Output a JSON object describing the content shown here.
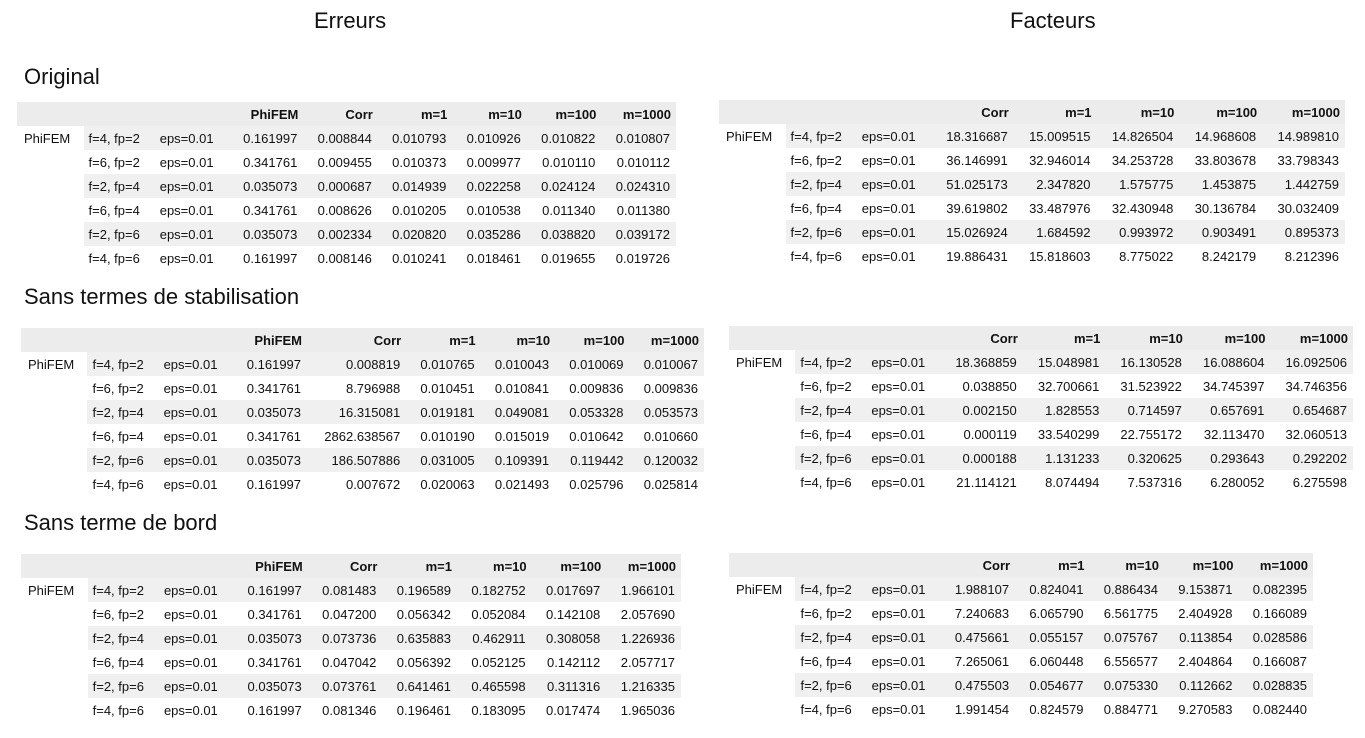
{
  "columns": {
    "left_title": "Erreurs",
    "right_title": "Facteurs"
  },
  "sections": [
    {
      "title": "Original",
      "errors": {
        "headers": [
          "PhiFEM",
          "Corr",
          "m=1",
          "m=10",
          "m=100",
          "m=1000"
        ],
        "group_label": "PhiFEM",
        "rows": [
          {
            "f": "f=4, fp=2",
            "eps": "eps=0.01",
            "values": [
              "0.161997",
              "0.008844",
              "0.010793",
              "0.010926",
              "0.010822",
              "0.010807"
            ]
          },
          {
            "f": "f=6, fp=2",
            "eps": "eps=0.01",
            "values": [
              "0.341761",
              "0.009455",
              "0.010373",
              "0.009977",
              "0.010110",
              "0.010112"
            ]
          },
          {
            "f": "f=2, fp=4",
            "eps": "eps=0.01",
            "values": [
              "0.035073",
              "0.000687",
              "0.014939",
              "0.022258",
              "0.024124",
              "0.024310"
            ]
          },
          {
            "f": "f=6, fp=4",
            "eps": "eps=0.01",
            "values": [
              "0.341761",
              "0.008626",
              "0.010205",
              "0.010538",
              "0.011340",
              "0.011380"
            ]
          },
          {
            "f": "f=2, fp=6",
            "eps": "eps=0.01",
            "values": [
              "0.035073",
              "0.002334",
              "0.020820",
              "0.035286",
              "0.038820",
              "0.039172"
            ]
          },
          {
            "f": "f=4, fp=6",
            "eps": "eps=0.01",
            "values": [
              "0.161997",
              "0.008146",
              "0.010241",
              "0.018461",
              "0.019655",
              "0.019726"
            ]
          }
        ]
      },
      "factors": {
        "headers": [
          "Corr",
          "m=1",
          "m=10",
          "m=100",
          "m=1000"
        ],
        "group_label": "PhiFEM",
        "rows": [
          {
            "f": "f=4, fp=2",
            "eps": "eps=0.01",
            "values": [
              "18.316687",
              "15.009515",
              "14.826504",
              "14.968608",
              "14.989810"
            ]
          },
          {
            "f": "f=6, fp=2",
            "eps": "eps=0.01",
            "values": [
              "36.146991",
              "32.946014",
              "34.253728",
              "33.803678",
              "33.798343"
            ]
          },
          {
            "f": "f=2, fp=4",
            "eps": "eps=0.01",
            "values": [
              "51.025173",
              "2.347820",
              "1.575775",
              "1.453875",
              "1.442759"
            ]
          },
          {
            "f": "f=6, fp=4",
            "eps": "eps=0.01",
            "values": [
              "39.619802",
              "33.487976",
              "32.430948",
              "30.136784",
              "30.032409"
            ]
          },
          {
            "f": "f=2, fp=6",
            "eps": "eps=0.01",
            "values": [
              "15.026924",
              "1.684592",
              "0.993972",
              "0.903491",
              "0.895373"
            ]
          },
          {
            "f": "f=4, fp=6",
            "eps": "eps=0.01",
            "values": [
              "19.886431",
              "15.818603",
              "8.775022",
              "8.242179",
              "8.212396"
            ]
          }
        ]
      }
    },
    {
      "title": "Sans termes de stabilisation",
      "errors": {
        "headers": [
          "PhiFEM",
          "Corr",
          "m=1",
          "m=10",
          "m=100",
          "m=1000"
        ],
        "group_label": "PhiFEM",
        "rows": [
          {
            "f": "f=4, fp=2",
            "eps": "eps=0.01",
            "values": [
              "0.161997",
              "0.008819",
              "0.010765",
              "0.010043",
              "0.010069",
              "0.010067"
            ]
          },
          {
            "f": "f=6, fp=2",
            "eps": "eps=0.01",
            "values": [
              "0.341761",
              "8.796988",
              "0.010451",
              "0.010841",
              "0.009836",
              "0.009836"
            ]
          },
          {
            "f": "f=2, fp=4",
            "eps": "eps=0.01",
            "values": [
              "0.035073",
              "16.315081",
              "0.019181",
              "0.049081",
              "0.053328",
              "0.053573"
            ]
          },
          {
            "f": "f=6, fp=4",
            "eps": "eps=0.01",
            "values": [
              "0.341761",
              "2862.638567",
              "0.010190",
              "0.015019",
              "0.010642",
              "0.010660"
            ]
          },
          {
            "f": "f=2, fp=6",
            "eps": "eps=0.01",
            "values": [
              "0.035073",
              "186.507886",
              "0.031005",
              "0.109391",
              "0.119442",
              "0.120032"
            ]
          },
          {
            "f": "f=4, fp=6",
            "eps": "eps=0.01",
            "values": [
              "0.161997",
              "0.007672",
              "0.020063",
              "0.021493",
              "0.025796",
              "0.025814"
            ]
          }
        ]
      },
      "factors": {
        "headers": [
          "Corr",
          "m=1",
          "m=10",
          "m=100",
          "m=1000"
        ],
        "group_label": "PhiFEM",
        "rows": [
          {
            "f": "f=4, fp=2",
            "eps": "eps=0.01",
            "values": [
              "18.368859",
              "15.048981",
              "16.130528",
              "16.088604",
              "16.092506"
            ]
          },
          {
            "f": "f=6, fp=2",
            "eps": "eps=0.01",
            "values": [
              "0.038850",
              "32.700661",
              "31.523922",
              "34.745397",
              "34.746356"
            ]
          },
          {
            "f": "f=2, fp=4",
            "eps": "eps=0.01",
            "values": [
              "0.002150",
              "1.828553",
              "0.714597",
              "0.657691",
              "0.654687"
            ]
          },
          {
            "f": "f=6, fp=4",
            "eps": "eps=0.01",
            "values": [
              "0.000119",
              "33.540299",
              "22.755172",
              "32.113470",
              "32.060513"
            ]
          },
          {
            "f": "f=2, fp=6",
            "eps": "eps=0.01",
            "values": [
              "0.000188",
              "1.131233",
              "0.320625",
              "0.293643",
              "0.292202"
            ]
          },
          {
            "f": "f=4, fp=6",
            "eps": "eps=0.01",
            "values": [
              "21.114121",
              "8.074494",
              "7.537316",
              "6.280052",
              "6.275598"
            ]
          }
        ]
      }
    },
    {
      "title": "Sans terme de bord",
      "errors": {
        "headers": [
          "PhiFEM",
          "Corr",
          "m=1",
          "m=10",
          "m=100",
          "m=1000"
        ],
        "group_label": "PhiFEM",
        "rows": [
          {
            "f": "f=4, fp=2",
            "eps": "eps=0.01",
            "values": [
              "0.161997",
              "0.081483",
              "0.196589",
              "0.182752",
              "0.017697",
              "1.966101"
            ]
          },
          {
            "f": "f=6, fp=2",
            "eps": "eps=0.01",
            "values": [
              "0.341761",
              "0.047200",
              "0.056342",
              "0.052084",
              "0.142108",
              "2.057690"
            ]
          },
          {
            "f": "f=2, fp=4",
            "eps": "eps=0.01",
            "values": [
              "0.035073",
              "0.073736",
              "0.635883",
              "0.462911",
              "0.308058",
              "1.226936"
            ]
          },
          {
            "f": "f=6, fp=4",
            "eps": "eps=0.01",
            "values": [
              "0.341761",
              "0.047042",
              "0.056392",
              "0.052125",
              "0.142112",
              "2.057717"
            ]
          },
          {
            "f": "f=2, fp=6",
            "eps": "eps=0.01",
            "values": [
              "0.035073",
              "0.073761",
              "0.641461",
              "0.465598",
              "0.311316",
              "1.216335"
            ]
          },
          {
            "f": "f=4, fp=6",
            "eps": "eps=0.01",
            "values": [
              "0.161997",
              "0.081346",
              "0.196461",
              "0.183095",
              "0.017474",
              "1.965036"
            ]
          }
        ]
      },
      "factors": {
        "headers": [
          "Corr",
          "m=1",
          "m=10",
          "m=100",
          "m=1000"
        ],
        "group_label": "PhiFEM",
        "rows": [
          {
            "f": "f=4, fp=2",
            "eps": "eps=0.01",
            "values": [
              "1.988107",
              "0.824041",
              "0.886434",
              "9.153871",
              "0.082395"
            ]
          },
          {
            "f": "f=6, fp=2",
            "eps": "eps=0.01",
            "values": [
              "7.240683",
              "6.065790",
              "6.561775",
              "2.404928",
              "0.166089"
            ]
          },
          {
            "f": "f=2, fp=4",
            "eps": "eps=0.01",
            "values": [
              "0.475661",
              "0.055157",
              "0.075767",
              "0.113854",
              "0.028586"
            ]
          },
          {
            "f": "f=6, fp=4",
            "eps": "eps=0.01",
            "values": [
              "7.265061",
              "6.060448",
              "6.556577",
              "2.404864",
              "0.166087"
            ]
          },
          {
            "f": "f=2, fp=6",
            "eps": "eps=0.01",
            "values": [
              "0.475503",
              "0.054677",
              "0.075330",
              "0.112662",
              "0.028835"
            ]
          },
          {
            "f": "f=4, fp=6",
            "eps": "eps=0.01",
            "values": [
              "1.991454",
              "0.824579",
              "0.884771",
              "9.270583",
              "0.082440"
            ]
          }
        ]
      }
    }
  ]
}
